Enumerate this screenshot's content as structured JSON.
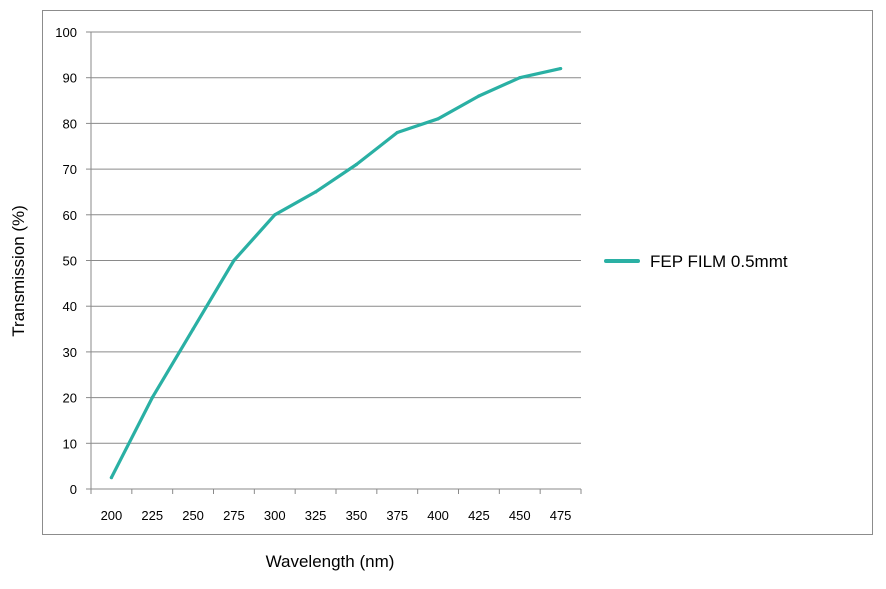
{
  "chart_data": {
    "type": "line",
    "xlabel": "Wavelength (nm)",
    "ylabel": "Transmission (%)",
    "categories": [
      "200",
      "225",
      "250",
      "275",
      "300",
      "325",
      "350",
      "375",
      "400",
      "425",
      "450",
      "475"
    ],
    "ylim": [
      0,
      100
    ],
    "yticks": [
      0,
      10,
      20,
      30,
      40,
      50,
      60,
      70,
      80,
      90,
      100
    ],
    "grid": true,
    "legend_position": "right",
    "series": [
      {
        "name": "FEP FILM 0.5mmt",
        "color": "#2ab0a4",
        "values": [
          2.5,
          20,
          35,
          50,
          60,
          65,
          71,
          78,
          81,
          86,
          90,
          92
        ]
      }
    ]
  }
}
